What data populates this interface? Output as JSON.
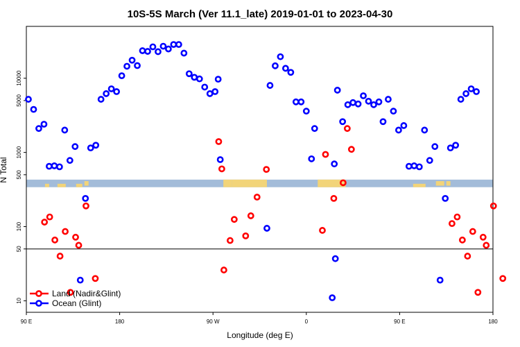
{
  "chart_data": {
    "type": "scatter",
    "title": "10S-5S March (Ver 11.1_late)   2019-01-01 to 2023-04-30",
    "xlabel": "Longitude (deg E)",
    "ylabel": "N Total",
    "xscale": "linear",
    "yscale": "log",
    "xlim": [
      90,
      540
    ],
    "ylim": [
      7,
      50000
    ],
    "x_ticks": [
      {
        "value": 90,
        "label": "90 E"
      },
      {
        "value": 180,
        "label": "180"
      },
      {
        "value": 270,
        "label": "90 W"
      },
      {
        "value": 360,
        "label": "0"
      },
      {
        "value": 450,
        "label": "90 E"
      },
      {
        "value": 540,
        "label": "180"
      }
    ],
    "y_ticks": [
      {
        "value": 10,
        "label": "10"
      },
      {
        "value": 50,
        "label": "50"
      },
      {
        "value": 100,
        "label": "100"
      },
      {
        "value": 500,
        "label": "500"
      },
      {
        "value": 1000,
        "label": "1000"
      },
      {
        "value": 5000,
        "label": "5000"
      },
      {
        "value": 10000,
        "label": "10000"
      }
    ],
    "reference_line_y": 50,
    "map_strip": {
      "y_low": 340,
      "y_high": 430
    },
    "legend": [
      {
        "name": "Land (Nadir&Glint)",
        "color": "#ff0000"
      },
      {
        "name": "Ocean (Glint)",
        "color": "#0000ff"
      }
    ],
    "series": [
      {
        "name": "Land (Nadir&Glint)",
        "color": "#ff0000",
        "points": [
          [
            107.5,
            115
          ],
          [
            112.5,
            135
          ],
          [
            117.5,
            66
          ],
          [
            122.5,
            40
          ],
          [
            127.5,
            86
          ],
          [
            132.5,
            13
          ],
          [
            137.5,
            72
          ],
          [
            140.5,
            56
          ],
          [
            147.5,
            190
          ],
          [
            156.5,
            20
          ],
          [
            275.5,
            1400
          ],
          [
            278.5,
            600
          ],
          [
            280.5,
            26
          ],
          [
            286.5,
            65
          ],
          [
            290.5,
            125
          ],
          [
            301.5,
            75
          ],
          [
            306.5,
            140
          ],
          [
            312.5,
            250
          ],
          [
            321.5,
            590
          ],
          [
            375.5,
            89
          ],
          [
            378.5,
            940
          ],
          [
            386.5,
            240
          ],
          [
            395.5,
            390
          ],
          [
            399.5,
            2100
          ],
          [
            403.5,
            1100
          ],
          [
            500.5,
            110
          ],
          [
            505.5,
            135
          ],
          [
            510.5,
            66
          ],
          [
            515.5,
            40
          ],
          [
            520.5,
            86
          ],
          [
            525.5,
            13
          ],
          [
            530.5,
            72
          ],
          [
            533.5,
            56
          ],
          [
            540.5,
            190
          ],
          [
            549.5,
            20
          ]
        ]
      },
      {
        "name": "Ocean (Glint)",
        "color": "#0000ff",
        "points": [
          [
            92,
            5200
          ],
          [
            97,
            3800
          ],
          [
            102,
            2100
          ],
          [
            107,
            2400
          ],
          [
            112,
            650
          ],
          [
            117,
            660
          ],
          [
            122,
            640
          ],
          [
            127,
            2000
          ],
          [
            132,
            780
          ],
          [
            137,
            1200
          ],
          [
            142,
            19
          ],
          [
            147,
            240
          ],
          [
            152,
            1150
          ],
          [
            157,
            1250
          ],
          [
            162,
            5200
          ],
          [
            167,
            6200
          ],
          [
            172,
            7200
          ],
          [
            177,
            6600
          ],
          [
            182,
            10800
          ],
          [
            187,
            14500
          ],
          [
            192,
            17500
          ],
          [
            197,
            14800
          ],
          [
            202,
            23500
          ],
          [
            207,
            23000
          ],
          [
            212,
            26500
          ],
          [
            217,
            22800
          ],
          [
            222,
            27000
          ],
          [
            227,
            24800
          ],
          [
            232,
            28500
          ],
          [
            237,
            28500
          ],
          [
            242,
            21800
          ],
          [
            247,
            11500
          ],
          [
            252,
            10300
          ],
          [
            257,
            9800
          ],
          [
            262,
            7600
          ],
          [
            267,
            6200
          ],
          [
            272,
            6600
          ],
          [
            275,
            9700
          ],
          [
            277,
            800
          ],
          [
            322,
            95
          ],
          [
            325,
            8000
          ],
          [
            330,
            14700
          ],
          [
            335,
            19500
          ],
          [
            340,
            13600
          ],
          [
            345,
            12000
          ],
          [
            350,
            4800
          ],
          [
            355,
            4800
          ],
          [
            360,
            3600
          ],
          [
            365,
            820
          ],
          [
            368,
            2100
          ],
          [
            387,
            700
          ],
          [
            390,
            6900
          ],
          [
            395,
            2600
          ],
          [
            400,
            4400
          ],
          [
            405,
            4700
          ],
          [
            410,
            4500
          ],
          [
            415,
            5800
          ],
          [
            420,
            4900
          ],
          [
            425,
            4400
          ],
          [
            430,
            4800
          ],
          [
            434,
            2600
          ],
          [
            439,
            5200
          ],
          [
            444,
            3600
          ],
          [
            449,
            2000
          ],
          [
            454,
            2300
          ],
          [
            459,
            650
          ],
          [
            464,
            660
          ],
          [
            469,
            640
          ],
          [
            474,
            2000
          ],
          [
            479,
            780
          ],
          [
            484,
            1200
          ],
          [
            489,
            19
          ],
          [
            494,
            240
          ],
          [
            499,
            1150
          ],
          [
            504,
            1250
          ],
          [
            509,
            5200
          ],
          [
            514,
            6200
          ],
          [
            519,
            7200
          ],
          [
            524,
            6600
          ],
          [
            385,
            11
          ],
          [
            388,
            37
          ]
        ]
      }
    ]
  }
}
